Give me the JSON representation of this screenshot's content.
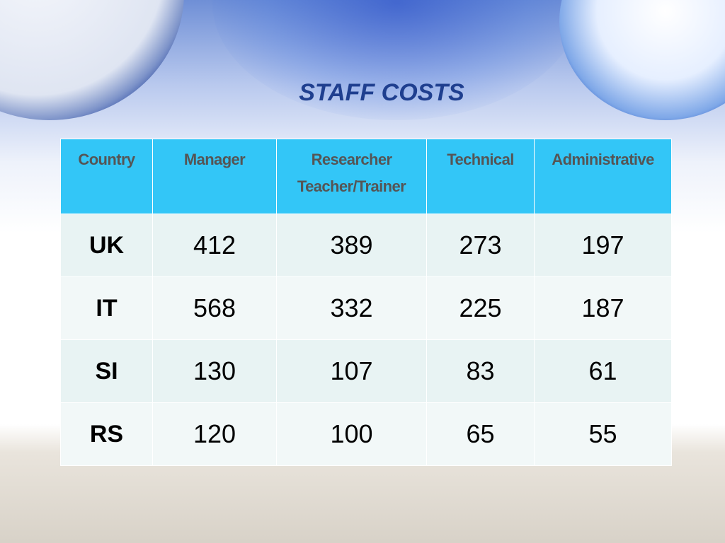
{
  "title": "STAFF COSTS",
  "table": {
    "header": [
      [
        "Country"
      ],
      [
        "Manager"
      ],
      [
        "Researcher",
        "Teacher/Trainer"
      ],
      [
        "Technical"
      ],
      [
        "Administrative"
      ]
    ],
    "rows": [
      [
        "UK",
        412,
        389,
        273,
        197
      ],
      [
        "IT",
        568,
        332,
        225,
        187
      ],
      [
        "SI",
        130,
        107,
        83,
        61
      ],
      [
        "RS",
        120,
        100,
        65,
        55
      ]
    ]
  }
}
